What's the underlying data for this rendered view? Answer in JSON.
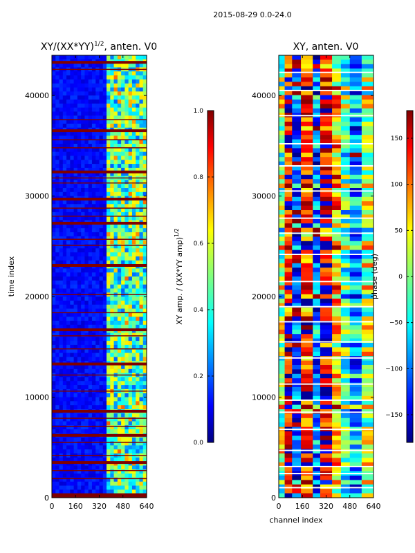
{
  "suptitle": "2015-08-29 0.0-24.0",
  "chart_data": [
    {
      "type": "heatmap",
      "title": "XY/(XX*YY)^{1/2}, anten. V0",
      "title_main": "XY/(XX*YY)",
      "title_sup": "1/2",
      "title_tail": ", anten. V0",
      "xlabel": "",
      "ylabel": "time index",
      "xlim": [
        0,
        640
      ],
      "ylim": [
        0,
        44000
      ],
      "xticks": [
        0,
        160,
        320,
        480,
        640
      ],
      "yticks": [
        0,
        10000,
        20000,
        30000,
        40000
      ],
      "colormap": "jet",
      "colorbar": {
        "label": "XY amp. / (XX*YY amp)^{1/2}",
        "label_main": "XY amp. / (XX*YY amp)",
        "label_sup": "1/2",
        "range": [
          0.0,
          1.0
        ],
        "ticks": [
          0.0,
          0.2,
          0.4,
          0.6,
          0.8,
          1.0
        ],
        "tick_labels": [
          "0.0",
          "0.2",
          "0.4",
          "0.6",
          "0.8",
          "1.0"
        ]
      },
      "bands": [
        {
          "x": [
            380,
            640
          ],
          "value": 0.45,
          "description": "bright channel region"
        },
        {
          "x": [
            0,
            380
          ],
          "value": 0.12,
          "description": "low amplitude region"
        }
      ],
      "saturated_rows": [
        300,
        1900,
        2700,
        3500,
        4200,
        5500,
        6200,
        7100,
        7900,
        8600,
        10600,
        12200,
        13300,
        14800,
        16100,
        16700,
        18400,
        20200,
        23100,
        25100,
        25700,
        27300,
        28000,
        28800,
        29700,
        31300,
        31800,
        32400,
        34800,
        35600,
        36500,
        37600,
        42600,
        43300
      ]
    },
    {
      "type": "heatmap",
      "title": "XY, anten. V0",
      "xlabel": "channel index",
      "ylabel": "",
      "xlim": [
        0,
        640
      ],
      "ylim": [
        0,
        44000
      ],
      "xticks": [
        0,
        160,
        320,
        480,
        640
      ],
      "yticks": [
        0,
        10000,
        20000,
        30000,
        40000
      ],
      "colormap": "jet",
      "colorbar": {
        "label": "phase (deg)",
        "range": [
          -180,
          180
        ],
        "ticks": [
          -150,
          -100,
          -50,
          0,
          50,
          100,
          150
        ],
        "tick_labels": [
          "−150",
          "−100",
          "−50",
          "0",
          "50",
          "100",
          "150"
        ]
      },
      "vertical_bands": [
        {
          "x": [
            0,
            40
          ],
          "value": 10
        },
        {
          "x": [
            40,
            90
          ],
          "value": 140
        },
        {
          "x": [
            90,
            150
          ],
          "value": -120
        },
        {
          "x": [
            150,
            230
          ],
          "value": 120
        },
        {
          "x": [
            230,
            280
          ],
          "value": -100
        },
        {
          "x": [
            280,
            360
          ],
          "value": 150
        },
        {
          "x": [
            360,
            420
          ],
          "value": 60
        },
        {
          "x": [
            420,
            480
          ],
          "value": -20
        },
        {
          "x": [
            480,
            560
          ],
          "value": -80
        },
        {
          "x": [
            560,
            640
          ],
          "value": 20
        }
      ],
      "white_rows": [
        1000,
        2400,
        3100,
        4700,
        6800,
        8500,
        9700,
        11300,
        13900,
        15500,
        17500,
        19000,
        21500,
        24200,
        26300,
        27800,
        30500,
        33000,
        35200,
        38000,
        40500,
        42300
      ]
    }
  ]
}
